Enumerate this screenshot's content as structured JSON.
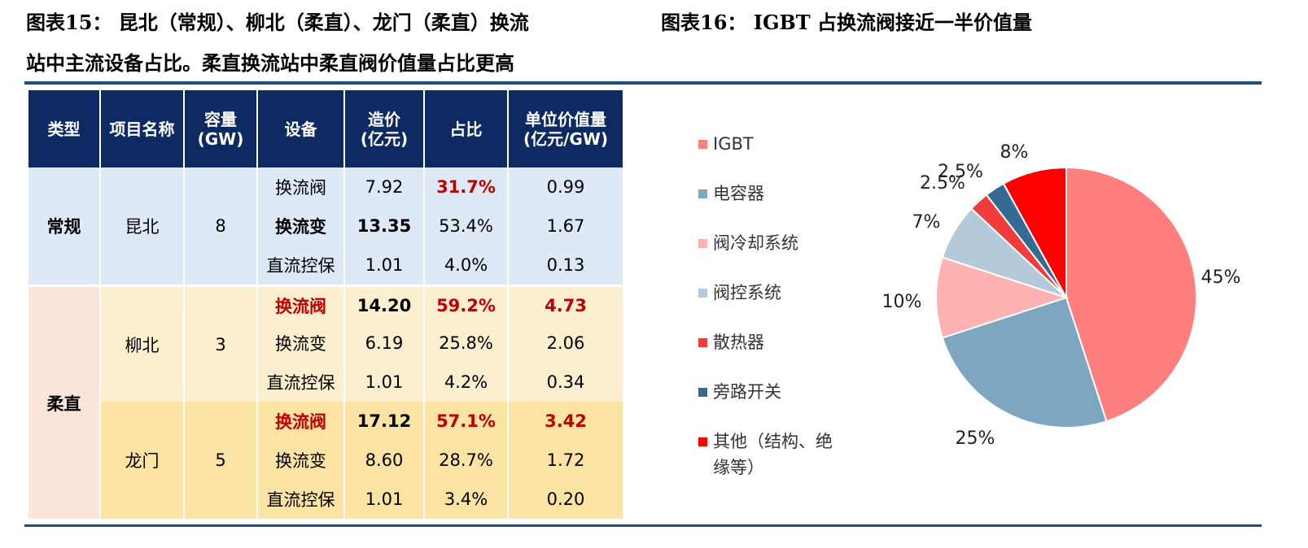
{
  "titles": {
    "fig15_line1": "图表15：  昆北（常规）、柳北（柔直）、龙门（柔直）换流",
    "fig15_line2": "站中主流设备占比。柔直换流站中柔直阀价值量占比更高",
    "fig16": "图表16：  IGBT 占换流阀接近一半价值量"
  },
  "table": {
    "headers": {
      "type": "类型",
      "project": "项目名称",
      "capacity_1": "容量",
      "capacity_2": "(GW)",
      "equipment": "设备",
      "cost_1": "造价",
      "cost_2": "(亿元)",
      "share": "占比",
      "unit_1": "单位价值量",
      "unit_2": "(亿元/GW)"
    },
    "types": {
      "conventional": "常规",
      "flexible": "柔直"
    },
    "projects": [
      {
        "name": "昆北",
        "capacity": "8",
        "rows": [
          {
            "equipment": "换流阀",
            "cost": "7.92",
            "share": "31.7%",
            "unit": "0.99"
          },
          {
            "equipment": "换流变",
            "cost": "13.35",
            "share": "53.4%",
            "unit": "1.67"
          },
          {
            "equipment": "直流控保",
            "cost": "1.01",
            "share": "4.0%",
            "unit": "0.13"
          }
        ]
      },
      {
        "name": "柳北",
        "capacity": "3",
        "rows": [
          {
            "equipment": "换流阀",
            "cost": "14.20",
            "share": "59.2%",
            "unit": "4.73"
          },
          {
            "equipment": "换流变",
            "cost": "6.19",
            "share": "25.8%",
            "unit": "2.06"
          },
          {
            "equipment": "直流控保",
            "cost": "1.01",
            "share": "4.2%",
            "unit": "0.34"
          }
        ]
      },
      {
        "name": "龙门",
        "capacity": "5",
        "rows": [
          {
            "equipment": "换流阀",
            "cost": "17.12",
            "share": "57.1%",
            "unit": "3.42"
          },
          {
            "equipment": "换流变",
            "cost": "8.60",
            "share": "28.7%",
            "unit": "1.72"
          },
          {
            "equipment": "直流控保",
            "cost": "1.01",
            "share": "3.4%",
            "unit": "0.20"
          }
        ]
      }
    ]
  },
  "chart_data": [
    {
      "type": "table",
      "columns": [
        "类型",
        "项目名称",
        "容量(GW)",
        "设备",
        "造价(亿元)",
        "占比",
        "单位价值量(亿元/GW)"
      ],
      "rows": [
        [
          "常规",
          "昆北",
          8,
          "换流阀",
          7.92,
          "31.7%",
          0.99
        ],
        [
          "常规",
          "昆北",
          8,
          "换流变",
          13.35,
          "53.4%",
          1.67
        ],
        [
          "常规",
          "昆北",
          8,
          "直流控保",
          1.01,
          "4.0%",
          0.13
        ],
        [
          "柔直",
          "柳北",
          3,
          "换流阀",
          14.2,
          "59.2%",
          4.73
        ],
        [
          "柔直",
          "柳北",
          3,
          "换流变",
          6.19,
          "25.8%",
          2.06
        ],
        [
          "柔直",
          "柳北",
          3,
          "直流控保",
          1.01,
          "4.2%",
          0.34
        ],
        [
          "柔直",
          "龙门",
          5,
          "换流阀",
          17.12,
          "57.1%",
          3.42
        ],
        [
          "柔直",
          "龙门",
          5,
          "换流变",
          8.6,
          "28.7%",
          1.72
        ],
        [
          "柔直",
          "龙门",
          5,
          "直流控保",
          1.01,
          "3.4%",
          0.2
        ]
      ]
    },
    {
      "type": "pie",
      "labels": [
        "IGBT",
        "电容器",
        "阀冷却系统",
        "阀控系统",
        "散热器",
        "旁路开关",
        "其他（结构、绝缘等）"
      ],
      "legend_lines": [
        [
          "IGBT"
        ],
        [
          "电容器"
        ],
        [
          "阀冷却系统"
        ],
        [
          "阀控系统"
        ],
        [
          "散热器"
        ],
        [
          "旁路开关"
        ],
        [
          "其他（结构、绝",
          "缘等）"
        ]
      ],
      "values": [
        45,
        25,
        10,
        7,
        2.5,
        2.5,
        8
      ],
      "value_labels": [
        "45%",
        "25%",
        "10%",
        "7%",
        "2.5%",
        "2.5%",
        "8%"
      ],
      "colors": [
        "#ff7f7f",
        "#7fa6c0",
        "#ffb2b2",
        "#b4c9d9",
        "#f23b3b",
        "#356a92",
        "#ff0000"
      ],
      "start_angle": "12 o'clock",
      "direction": "clockwise",
      "legend_position": "left"
    }
  ]
}
